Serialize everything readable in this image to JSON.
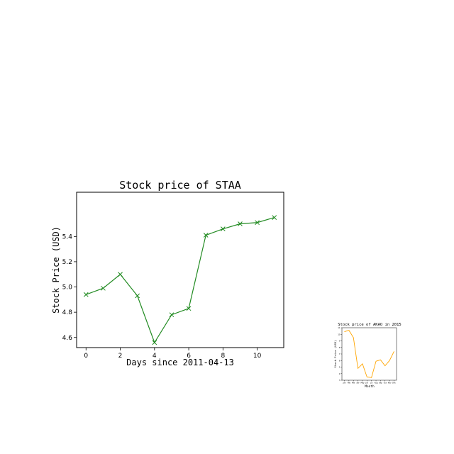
{
  "chart_data": [
    {
      "type": "line",
      "title": "Stock price of STAA",
      "xlabel": "Days since 2011-04-13",
      "ylabel": "Stock Price (USD)",
      "x": [
        0,
        1,
        2,
        3,
        4,
        5,
        6,
        7,
        8,
        9,
        10,
        11
      ],
      "series": [
        {
          "values": [
            4.94,
            4.99,
            5.1,
            4.93,
            4.56,
            4.78,
            4.83,
            5.41,
            5.46,
            5.5,
            5.51,
            5.55
          ]
        }
      ],
      "xticks": [
        0,
        2,
        4,
        6,
        8,
        10
      ],
      "yticks": [
        4.6,
        4.8,
        5.0,
        5.2,
        5.4
      ],
      "xlim": [
        -0.55,
        11.55
      ],
      "ylim": [
        4.52,
        5.75
      ],
      "color": "#228B22",
      "marker": "x",
      "grid": false
    },
    {
      "type": "line",
      "title": "Stock price of AKAO in 2015",
      "xlabel": "Month",
      "ylabel": "Stock Price (USD)",
      "x": [
        "Jan",
        "Feb",
        "Mar",
        "Apr",
        "May",
        "Jun",
        "Jul",
        "Aug",
        "Sep",
        "Oct",
        "Nov",
        "Dec"
      ],
      "series": [
        {
          "values": [
            10.4,
            10.6,
            9.5,
            4.8,
            5.5,
            3.5,
            3.4,
            5.9,
            6.1,
            5.2,
            6.0,
            7.4
          ]
        }
      ],
      "ylim": [
        3.0,
        11.0
      ],
      "yticks": [
        3,
        4,
        5,
        6,
        7,
        8,
        9,
        10,
        11
      ],
      "color": "#FFA500",
      "marker": "none",
      "grid": false
    }
  ]
}
